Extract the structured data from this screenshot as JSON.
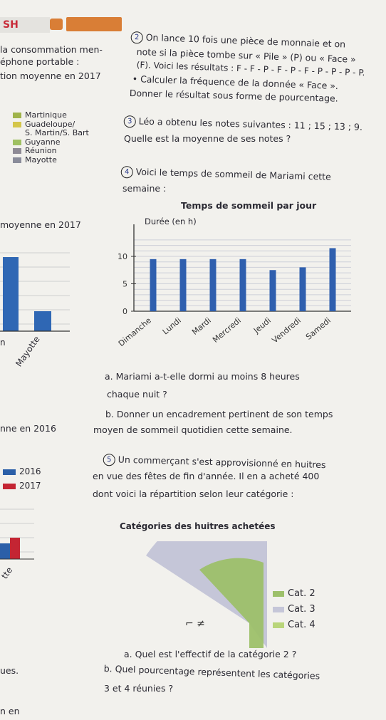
{
  "header": {
    "section_label": "SH",
    "badge_text": ""
  },
  "left_col": {
    "line1": "la consommation men-",
    "line2": "éphone portable :",
    "line3": "tion moyenne en 2017",
    "legend": [
      {
        "label": "Martinique",
        "color": "#9fb34a"
      },
      {
        "label": "Guadeloupe/",
        "color": "#d4c64a"
      },
      {
        "label": "S. Martin/S. Bart",
        "color": ""
      },
      {
        "label": "Guyanne",
        "color": "#9fc062"
      },
      {
        "label": "Réunion",
        "color": "#8e8a95"
      },
      {
        "label": "Mayotte",
        "color": "#8a8c9a"
      }
    ],
    "chart2_title": "moyenne en 2017",
    "mayotte_label": "Mayotte",
    "n_label": "n",
    "annee_line": "nne en 2016",
    "legend2": [
      {
        "label": "2016",
        "color": "#2b5fa8"
      },
      {
        "label": "2017",
        "color": "#c42533"
      }
    ],
    "tte_label": "tte",
    "ues_label": "ues.",
    "n_en_label": "n en"
  },
  "ex2": {
    "number": "2",
    "line1": "On lance 10 fois une pièce de monnaie et on",
    "line2": "note si la pièce tombe sur « Pile » (P) ou « Face »",
    "line3": "(F). Voici les résultats : F - F - P - F - P - F - P - P - P - P.",
    "line4": "• Calculer la fréquence de la donnée « Face ».",
    "line5": "Donner le résultat sous forme de pourcentage."
  },
  "ex3": {
    "number": "3",
    "line1": "Léo a obtenu les notes suivantes : 11 ; 15 ; 13 ; 9.",
    "line2": "Quelle est la moyenne de ses notes ?"
  },
  "ex4": {
    "number": "4",
    "line1": "Voici le temps de sommeil de Mariami cette",
    "line2": "semaine :",
    "qa1": "a. Mariami a-t-elle dormi au moins 8 heures",
    "qa2": "chaque nuit ?",
    "qb1": "b. Donner un encadrement pertinent de son temps",
    "qb2": "moyen de sommeil quotidien cette semaine."
  },
  "ex5": {
    "number": "5",
    "line1": "Un commerçant s'est approvisionné en huitres",
    "line2": "en vue des fêtes de fin d'année. Il en a acheté 400",
    "line3": "dont voici la répartition selon leur catégorie :",
    "pie_title": "Catégories des huitres achetées",
    "legend": [
      {
        "label": "Cat. 2",
        "color": "#9dc06a"
      },
      {
        "label": "Cat. 3",
        "color": "#c5c6d8"
      },
      {
        "label": "Cat. 4",
        "color": "#b9d57a"
      }
    ],
    "qa": "a. Quel est l'effectif de la catégorie 2 ?",
    "qb1": "b. Quel pourcentage représentent les catégories",
    "qb2": "3 et 4 réunies ?"
  },
  "chart_data": {
    "type": "bar",
    "title": "Temps de sommeil par jour",
    "ylabel": "Durée (en h)",
    "xlabel": "",
    "categories": [
      "Dimanche",
      "Lundi",
      "Mardi",
      "Mercredi",
      "Jeudi",
      "Vendredi",
      "Samedi"
    ],
    "values": [
      9.5,
      9.5,
      9.5,
      9.5,
      7.5,
      8,
      11.5
    ],
    "yticks": [
      0,
      5,
      10
    ],
    "ylim": [
      0,
      13
    ],
    "color": "#2f5fae",
    "grid": true
  }
}
